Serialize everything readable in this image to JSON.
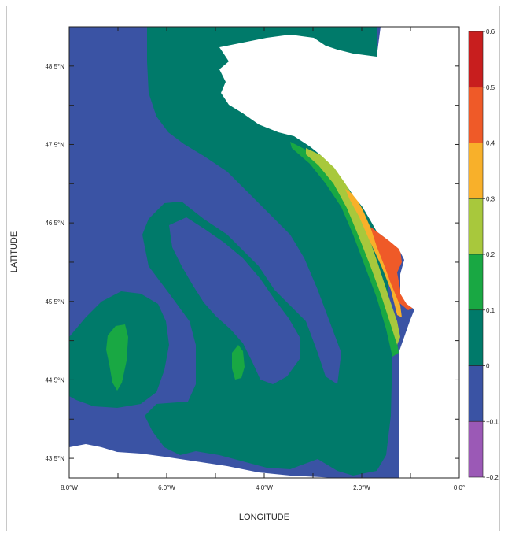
{
  "axes": {
    "xlabel": "LONGITUDE",
    "ylabel": "LATITUDE",
    "x_ticks": [
      "8.0°W",
      "6.0°W",
      "4.0°W",
      "2.0°W",
      "0.0°"
    ],
    "y_ticks": [
      "43.5°N",
      "44.5°N",
      "45.5°N",
      "46.5°N",
      "47.5°N",
      "48.5°N"
    ],
    "x_range": [
      -8.0,
      0.0
    ],
    "y_range": [
      43.25,
      49.0
    ]
  },
  "colorbar": {
    "labels": [
      "0.6",
      "0.5",
      "0.4",
      "0.3",
      "0.2",
      "0.1",
      "0",
      "−0.1",
      "−0.2"
    ],
    "bins": [
      {
        "range": "0.5 to 0.6",
        "color": "#c81e1e"
      },
      {
        "range": "0.4 to 0.5",
        "color": "#ef5a28"
      },
      {
        "range": "0.3 to 0.4",
        "color": "#f8b02a"
      },
      {
        "range": "0.2 to 0.3",
        "color": "#a8c83c"
      },
      {
        "range": "0.1 to 0.2",
        "color": "#19a843"
      },
      {
        "range": "0 to 0.1",
        "color": "#007a6a"
      },
      {
        "range": "−0.1 to 0",
        "color": "#3a53a4"
      },
      {
        "range": "−0.2 to −0.1",
        "color": "#9b59b6"
      }
    ]
  },
  "colors": {
    "negative": "#3a53a4",
    "teal": "#007a6a",
    "green": "#19a843",
    "lightgreen": "#a8c83c",
    "orange": "#f8b02a",
    "orangered": "#ef5a28",
    "land": "#ffffff"
  }
}
